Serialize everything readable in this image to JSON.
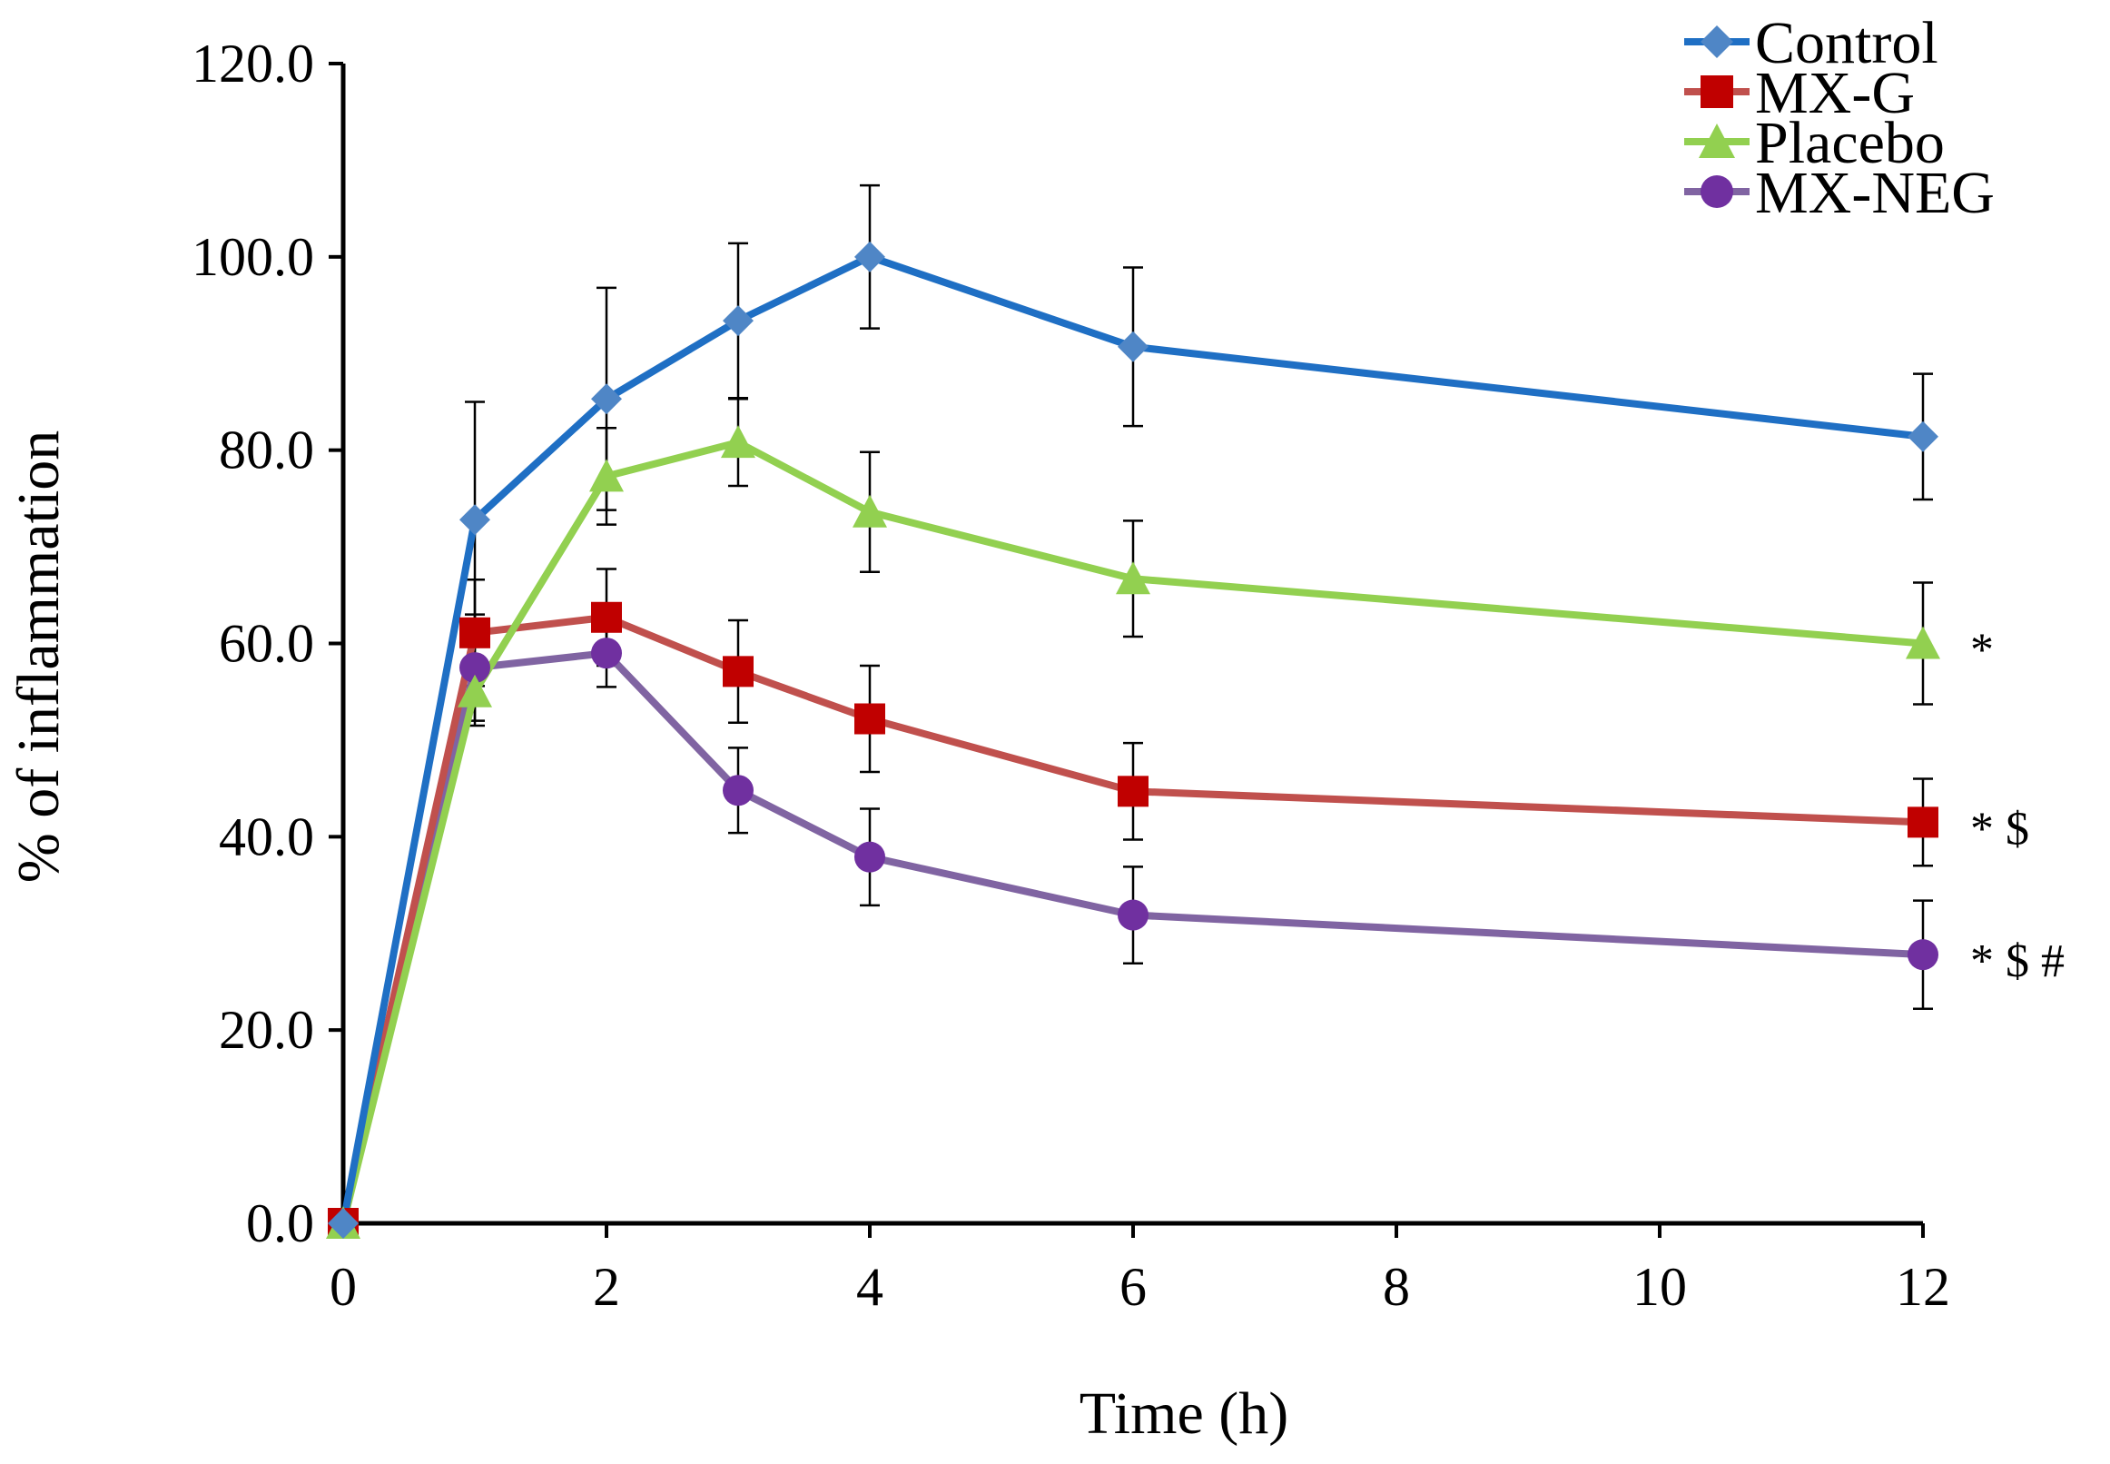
{
  "chart_data": {
    "type": "line",
    "title": "",
    "xlabel": "Time (h)",
    "ylabel": "% of inflammation",
    "xlim": [
      0,
      12
    ],
    "ylim": [
      0,
      120
    ],
    "xticks": [
      0,
      2,
      4,
      6,
      8,
      10,
      12
    ],
    "xtick_labels": [
      "0",
      "2",
      "4",
      "6",
      "8",
      "10",
      "12"
    ],
    "yticks": [
      0,
      20,
      40,
      60,
      80,
      100,
      120
    ],
    "ytick_labels": [
      "0.0",
      "20.0",
      "40.0",
      "60.0",
      "80.0",
      "100.0",
      "120.0"
    ],
    "grid": false,
    "legend_position": "top-right",
    "x": [
      0,
      1,
      2,
      3,
      4,
      6,
      12
    ],
    "series": [
      {
        "name": "Control",
        "color": "#1f6fc4",
        "marker": "diamond",
        "marker_color": "#4f86c6",
        "values": [
          0,
          72.8,
          85.3,
          93.4,
          100.0,
          90.7,
          81.4
        ],
        "errors": [
          0,
          12.2,
          11.5,
          8.0,
          7.4,
          8.2,
          6.5
        ],
        "significance": ""
      },
      {
        "name": "MX-G",
        "color": "#c0504d",
        "marker": "square",
        "marker_color": "#c00000",
        "values": [
          0,
          61.1,
          62.7,
          57.1,
          52.2,
          44.7,
          41.5
        ],
        "errors": [
          0,
          5.5,
          5.0,
          5.3,
          5.5,
          5.0,
          4.5
        ],
        "significance": "* $"
      },
      {
        "name": "Placebo",
        "color": "#92d050",
        "marker": "triangle",
        "marker_color": "#92d050",
        "values": [
          0,
          55.0,
          77.3,
          80.8,
          73.6,
          66.7,
          60.0
        ],
        "errors": [
          0,
          3.5,
          5.0,
          4.5,
          6.2,
          6.0,
          6.3
        ],
        "significance": "*"
      },
      {
        "name": "MX-NEG",
        "color": "#8064a2",
        "marker": "circle",
        "marker_color": "#7030a0",
        "values": [
          0,
          57.5,
          59.0,
          44.8,
          37.9,
          31.9,
          27.8
        ],
        "errors": [
          0,
          5.5,
          3.5,
          4.4,
          5.0,
          5.0,
          5.6
        ],
        "significance": "* $ #"
      }
    ]
  }
}
